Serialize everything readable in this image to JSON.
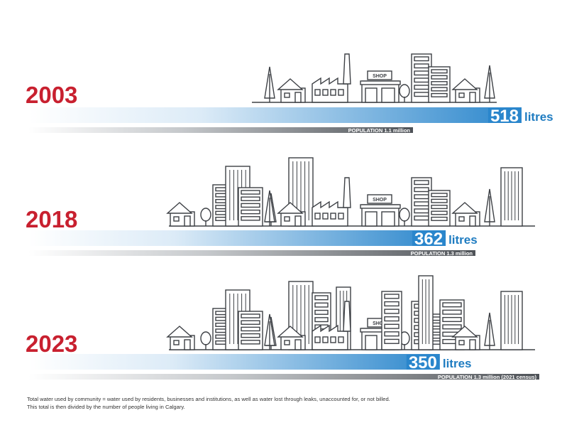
{
  "chart_data": {
    "type": "bar",
    "categories": [
      "2003",
      "2018",
      "2023"
    ],
    "series": [
      {
        "values": [
          518,
          362,
          350
        ],
        "unit_label": "litres"
      }
    ],
    "population_labels": [
      "POPULATION 1.1 million",
      "POPULATION 1.3 million",
      "POPULATION 1.3 million (2021 census)"
    ],
    "population_millions": [
      1.1,
      1.3,
      1.3
    ],
    "colors": {
      "year": "#c8202f",
      "water_bar": "#2a86cc",
      "population_bar": "#4e5257",
      "unit": "#1f7cc1"
    }
  },
  "footnote": {
    "line1": "Total water used by community = water used by residents, businesses and institutions, as well as water lost through leaks, unaccounted for, or not billed.",
    "line2": "This total is then divided by the number of people living in Calgary."
  },
  "shop_sign": "SHOP"
}
